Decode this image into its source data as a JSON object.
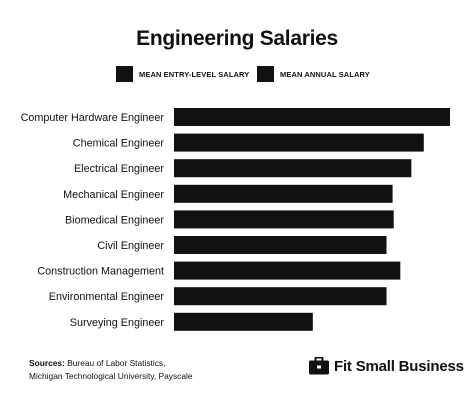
{
  "title": "Engineering Salaries",
  "legend": [
    {
      "label": "MEAN ENTRY-LEVEL SALARY",
      "color": "#111111"
    },
    {
      "label": "MEAN ANNUAL SALARY",
      "color": "#111111"
    }
  ],
  "chart_data": {
    "type": "bar",
    "orientation": "horizontal",
    "title": "Engineering Salaries",
    "categories": [
      "Computer Hardware Engineer",
      "Chemical Engineer",
      "Electrical Engineer",
      "Mechanical Engineer",
      "Biomedical Engineer",
      "Civil Engineer",
      "Construction Management",
      "Environmental Engineer",
      "Surveying Engineer"
    ],
    "series": [
      {
        "name": "MEAN ANNUAL SALARY",
        "values": [
          1.0,
          0.905,
          0.86,
          0.792,
          0.796,
          0.77,
          0.82,
          0.77,
          0.503
        ]
      }
    ],
    "value_scale_note": "relative bar length (longest bar = 1.0); no value axis is printed",
    "grid": false,
    "legend_position": "top"
  },
  "sources": {
    "label": "Sources:",
    "line1": "Bureau of Labor Statistics,",
    "line2": "Michigan Technological University, Payscale"
  },
  "brand": {
    "name": "Fit Small Business",
    "icon": "briefcase-icon"
  }
}
